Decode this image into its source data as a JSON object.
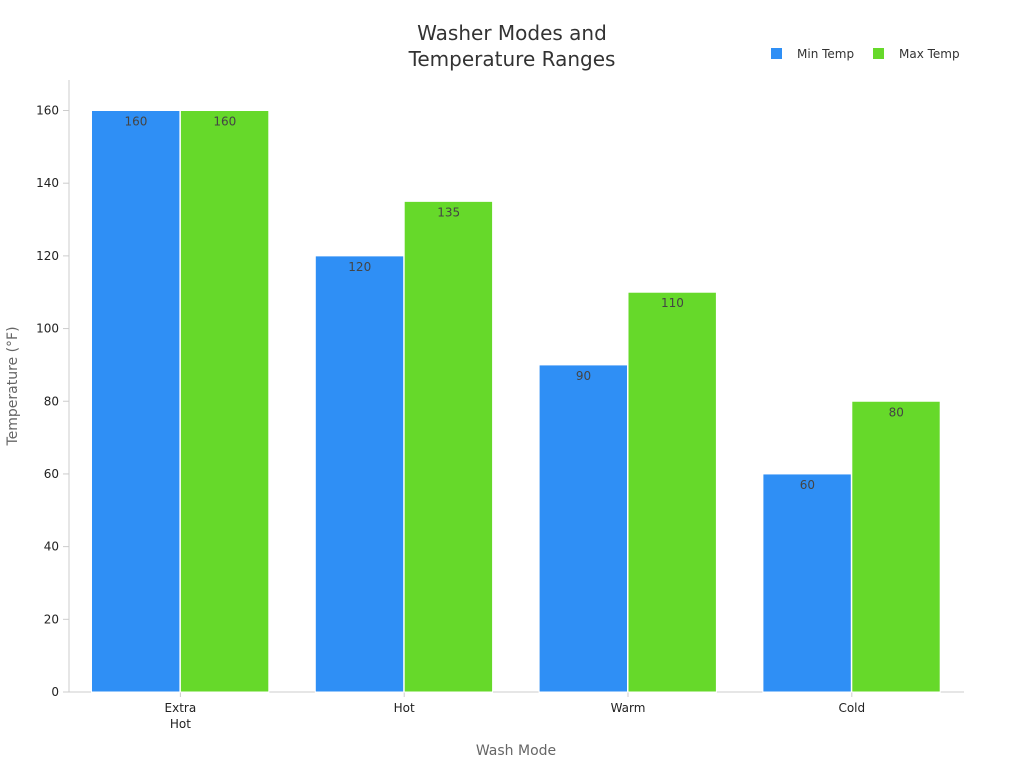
{
  "chart_data": {
    "type": "bar",
    "title_lines": [
      "Washer Modes and",
      "Temperature Ranges"
    ],
    "xlabel": "Wash Mode",
    "ylabel": "Temperature (°F)",
    "categories": [
      [
        "Extra",
        "Hot"
      ],
      [
        "Hot"
      ],
      [
        "Warm"
      ],
      [
        "Cold"
      ]
    ],
    "series": [
      {
        "name": "Min Temp",
        "color": "#2f8ff5",
        "values": [
          160,
          120,
          90,
          60
        ],
        "labels": [
          "160",
          "120",
          "90",
          "60"
        ]
      },
      {
        "name": "Max Temp",
        "color": "#66d92a",
        "values": [
          160,
          135,
          110,
          80
        ],
        "labels": [
          "160",
          "135",
          "110",
          "80"
        ]
      }
    ],
    "ylim": [
      0,
      168
    ],
    "yticks": [
      0,
      20,
      40,
      60,
      80,
      100,
      120,
      140,
      160
    ],
    "ytick_labels": [
      "0",
      "20",
      "40",
      "60",
      "80",
      "100",
      "120",
      "140",
      "160"
    ],
    "legend_position": "top-right",
    "grid": false
  }
}
